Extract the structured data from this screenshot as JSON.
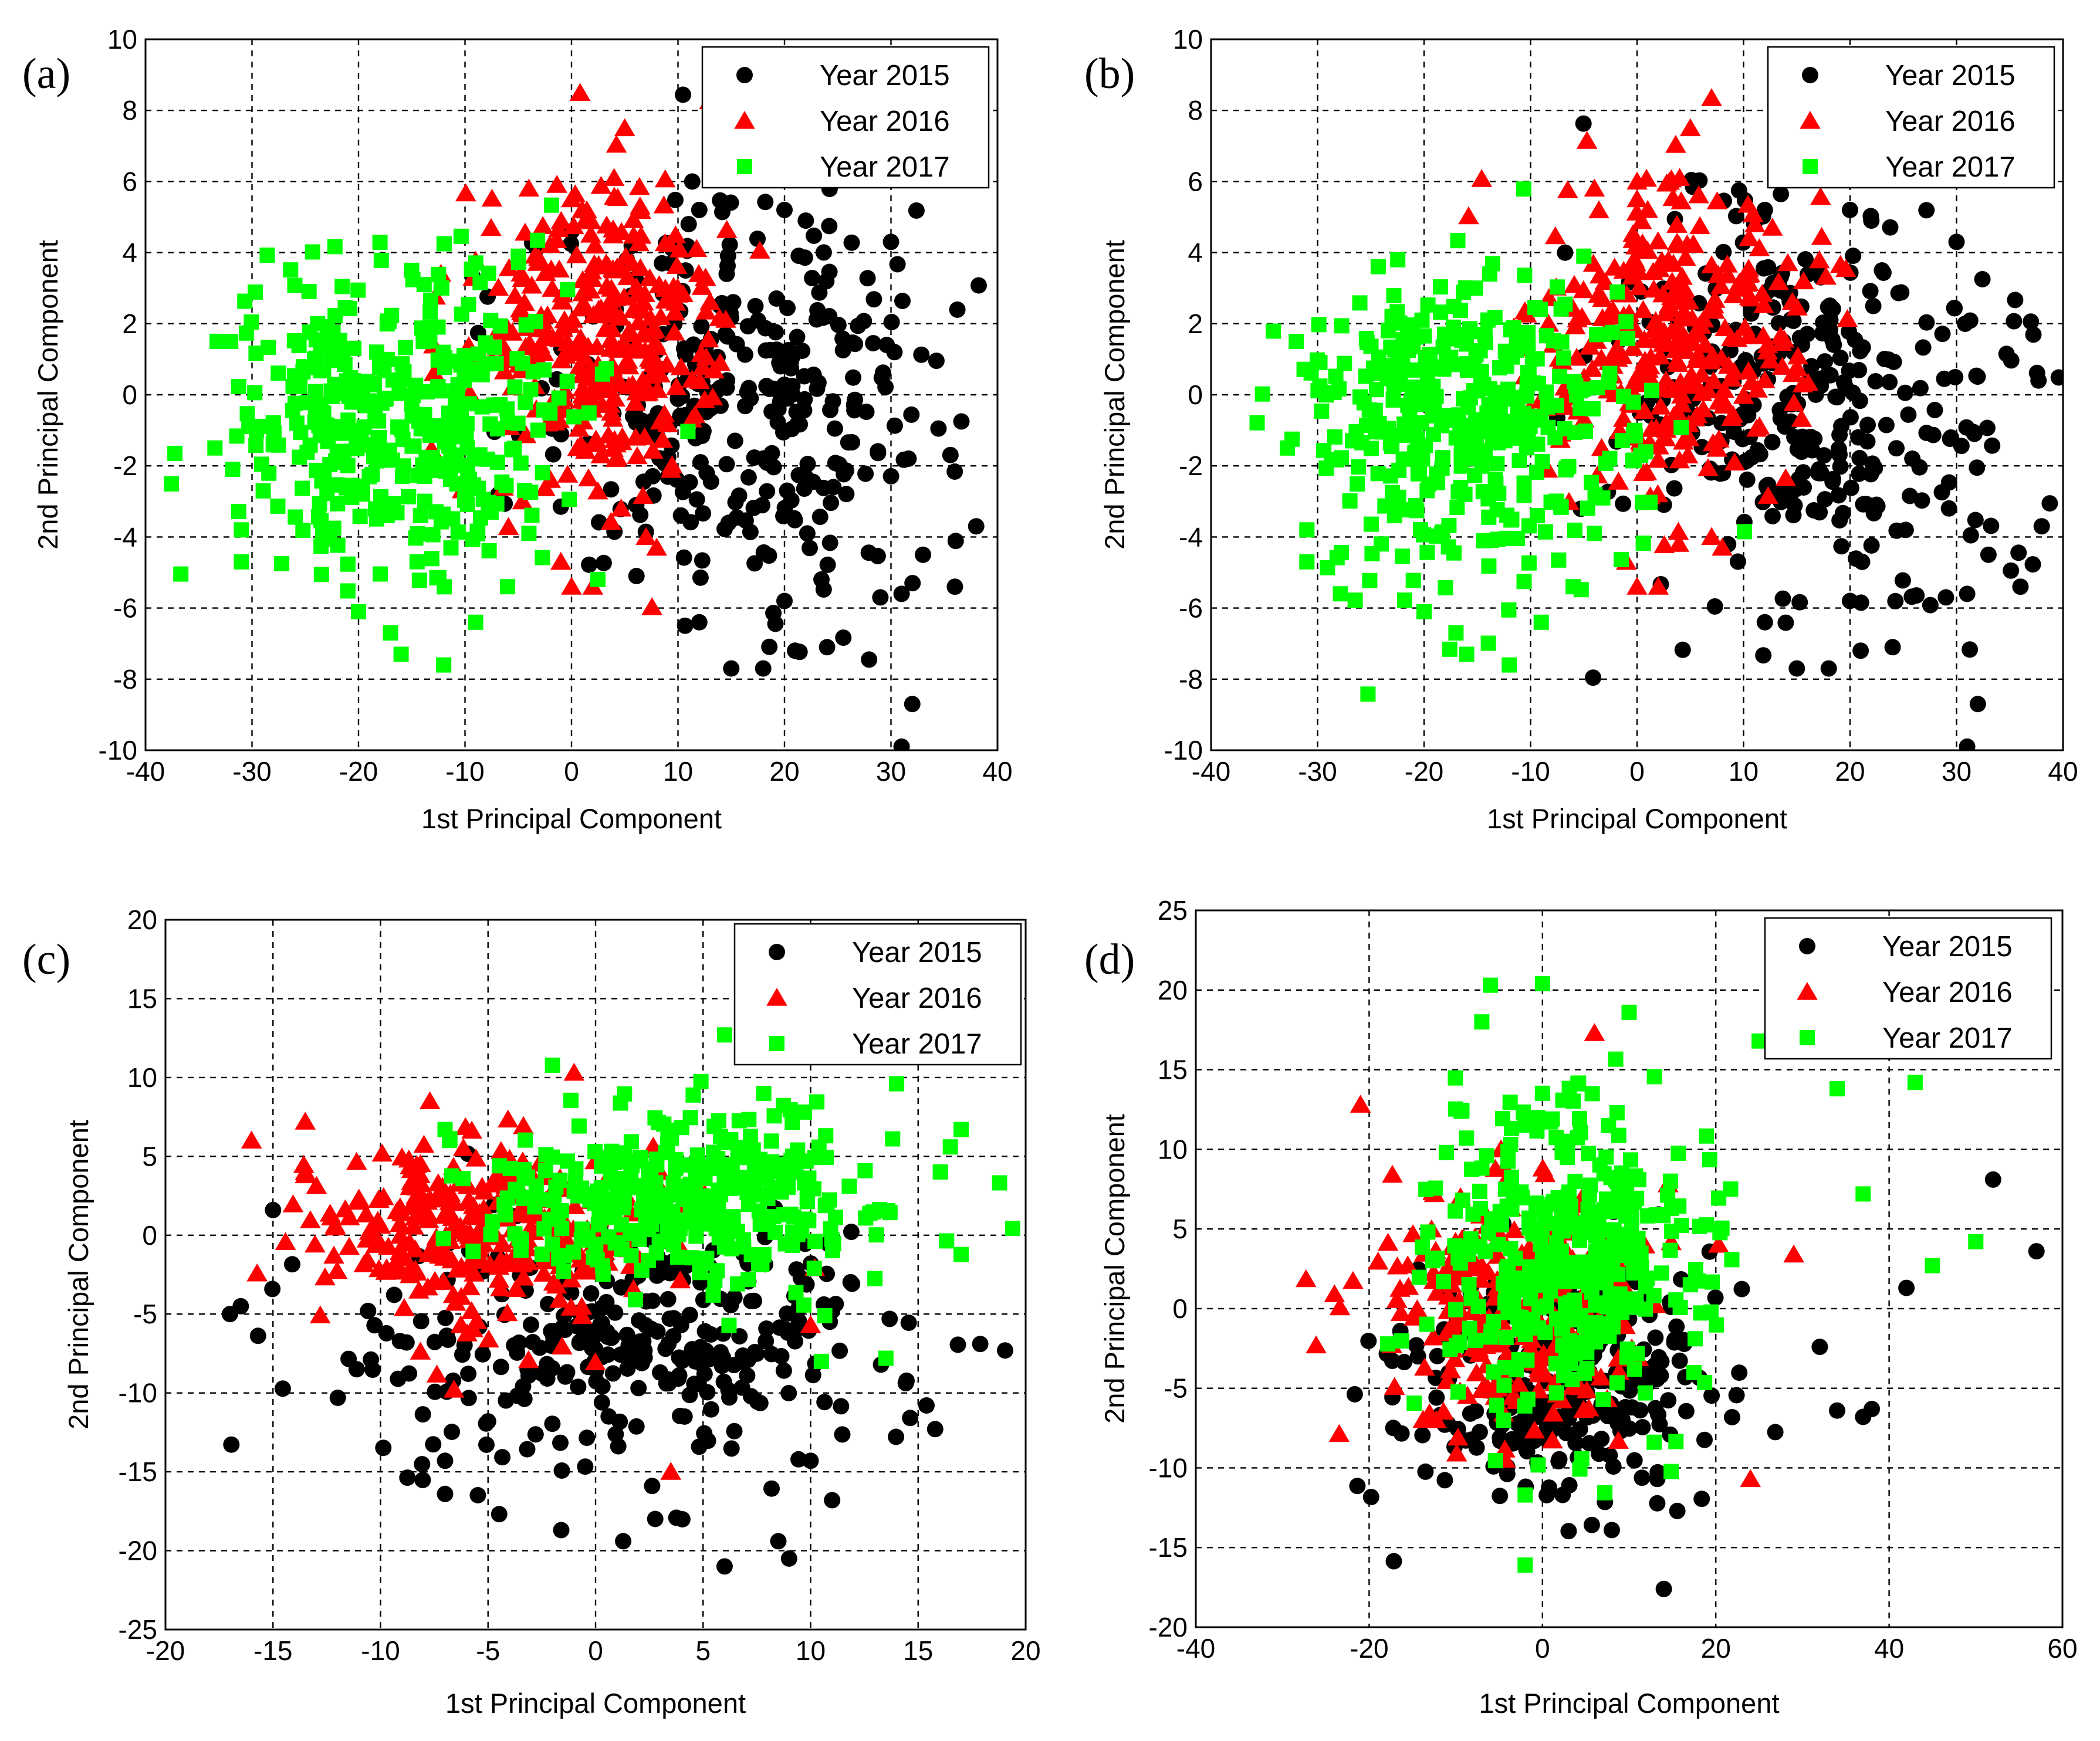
{
  "colors": {
    "year_2015": "#000000",
    "year_2016": "#ff0000",
    "year_2017": "#00ff00"
  },
  "chart_data": [
    {
      "id": "a",
      "panel_label": "(a)",
      "type": "scatter",
      "xlabel": "1st Principal Component",
      "ylabel": "2nd Principal Component",
      "xlim": [
        -40,
        40
      ],
      "ylim": [
        -10,
        10
      ],
      "xticks": [
        -40,
        -30,
        -20,
        -10,
        0,
        10,
        20,
        30,
        40
      ],
      "yticks": [
        -10,
        -8,
        -6,
        -4,
        -2,
        0,
        2,
        4,
        6,
        8,
        10
      ],
      "grid": true,
      "legend_position": "top-right",
      "legend": [
        "Year 2015",
        "Year 2016",
        "Year 2017"
      ],
      "series": [
        {
          "name": "Year 2015",
          "marker": "circle",
          "color": "#000000",
          "center": [
            16,
            0
          ],
          "spread": [
            10,
            2.8
          ],
          "count": 320,
          "x": [
            12,
            11,
            20,
            22,
            30,
            31,
            32,
            38,
            36,
            33,
            15,
            18,
            20,
            24,
            31,
            29,
            21,
            12
          ],
          "y": [
            5.2,
            4.8,
            5.2,
            4.9,
            4.3,
            -9.9,
            -8.7,
            -3.7,
            -5.4,
            -4.5,
            -7.7,
            -7.7,
            -5.8,
            -7.1,
            -5.6,
            -5.7,
            -7.2,
            -6.4
          ]
        },
        {
          "name": "Year 2016",
          "marker": "triangle",
          "color": "#ff0000",
          "center": [
            3,
            1.6
          ],
          "spread": [
            6,
            2
          ],
          "count": 320,
          "x": [
            5,
            4,
            -4,
            0,
            1,
            2,
            0,
            8,
            7,
            -1
          ],
          "y": [
            7.5,
            6.1,
            5.8,
            5.5,
            5.2,
            -5.4,
            -5.4,
            -4.3,
            -4,
            -4.7
          ]
        },
        {
          "name": "Year 2017",
          "marker": "square",
          "color": "#00ff00",
          "center": [
            -16,
            -0.6
          ],
          "spread": [
            8,
            2.2
          ],
          "count": 380,
          "x": [
            -32,
            -31,
            -31,
            -20,
            -16,
            -17,
            -12,
            -9,
            -6,
            -5,
            -4
          ],
          "y": [
            1.5,
            -3.8,
            -4.7,
            -6.1,
            -7.3,
            -6.7,
            -7.6,
            -6.4,
            -5.4,
            3.9,
            -3.9
          ]
        }
      ]
    },
    {
      "id": "b",
      "panel_label": "(b)",
      "type": "scatter",
      "xlabel": "1st Principal Component",
      "ylabel": "2nd Principal Component",
      "xlim": [
        -40,
        40
      ],
      "ylim": [
        -10,
        10
      ],
      "xticks": [
        -40,
        -30,
        -20,
        -10,
        0,
        10,
        20,
        30,
        40
      ],
      "yticks": [
        -10,
        -8,
        -6,
        -4,
        -2,
        0,
        2,
        4,
        6,
        8,
        10
      ],
      "grid": true,
      "legend_position": "top-right",
      "legend": [
        "Year 2015",
        "Year 2016",
        "Year 2017"
      ],
      "series": [
        {
          "name": "Year 2015",
          "marker": "circle",
          "color": "#000000",
          "center": [
            16,
            0
          ],
          "spread": [
            10,
            2.8
          ],
          "count": 320,
          "x": [
            12,
            11,
            20,
            22,
            30,
            31,
            32,
            38,
            36,
            33,
            15,
            18,
            20,
            24,
            31,
            29,
            21,
            12
          ],
          "y": [
            5.2,
            4.8,
            5.2,
            4.9,
            4.3,
            -9.9,
            -8.7,
            -3.7,
            -5.4,
            -4.5,
            -7.7,
            -7.7,
            -5.8,
            -7.1,
            -5.6,
            -5.7,
            -7.2,
            -6.4
          ]
        },
        {
          "name": "Year 2016",
          "marker": "triangle",
          "color": "#ff0000",
          "center": [
            3,
            1.6
          ],
          "spread": [
            6,
            2
          ],
          "count": 320,
          "x": [
            5,
            4,
            -4,
            0,
            1,
            2,
            0,
            8,
            7,
            -1
          ],
          "y": [
            7.5,
            6.1,
            5.8,
            5.5,
            5.2,
            -5.4,
            -5.4,
            -4.3,
            -4,
            -4.7
          ]
        },
        {
          "name": "Year 2017",
          "marker": "square",
          "color": "#00ff00",
          "center": [
            -16,
            -0.6
          ],
          "spread": [
            8,
            2.2
          ],
          "count": 380,
          "x": [
            -32,
            -31,
            -31,
            -20,
            -16,
            -17,
            -12,
            -9,
            -6,
            -5,
            -4
          ],
          "y": [
            1.5,
            -3.8,
            -4.7,
            -6.1,
            -7.3,
            -6.7,
            -7.6,
            -6.4,
            -5.4,
            3.9,
            -3.9
          ]
        }
      ]
    },
    {
      "id": "c",
      "panel_label": "(c)",
      "type": "scatter",
      "xlabel": "1st Principal Component",
      "ylabel": "2nd Principal Component",
      "xlim": [
        -20,
        20
      ],
      "ylim": [
        -25,
        20
      ],
      "xticks": [
        -20,
        -15,
        -10,
        -5,
        0,
        5,
        10,
        15,
        20
      ],
      "yticks": [
        -25,
        -20,
        -15,
        -10,
        -5,
        0,
        5,
        10,
        15,
        20
      ],
      "grid": true,
      "legend_position": "top-right",
      "legend": [
        "Year 2015",
        "Year 2016",
        "Year 2017"
      ],
      "series": [
        {
          "name": "Year 2015",
          "marker": "circle",
          "color": "#000000",
          "center": [
            2,
            -7
          ],
          "spread": [
            6,
            4
          ],
          "count": 320,
          "x": [
            -17,
            -16.5,
            -15,
            -7,
            -7,
            -5,
            6,
            8.5,
            9,
            11,
            10
          ],
          "y": [
            -5,
            -4.5,
            1.6,
            -14.3,
            -16.4,
            -11.8,
            -21,
            -19.4,
            -20.5,
            -16.8,
            -14.3
          ]
        },
        {
          "name": "Year 2016",
          "marker": "triangle",
          "color": "#ff0000",
          "center": [
            -5,
            0.5
          ],
          "spread": [
            4,
            3
          ],
          "count": 300,
          "x": [
            -16,
            -13.5,
            -13.5,
            -1,
            3.5,
            10
          ],
          "y": [
            6,
            7.2,
            4,
            10.3,
            -15,
            -5.7
          ]
        },
        {
          "name": "Year 2017",
          "marker": "square",
          "color": "#00ff00",
          "center": [
            4,
            2.5
          ],
          "spread": [
            5,
            3
          ],
          "count": 360,
          "x": [
            6,
            14,
            16.5,
            17,
            13.5,
            10.5,
            -7
          ],
          "y": [
            12.7,
            9.6,
            5.6,
            6.7,
            -7.8,
            -8,
            6.7
          ]
        }
      ]
    },
    {
      "id": "d",
      "panel_label": "(d)",
      "type": "scatter",
      "xlabel": "1st Principal Component",
      "ylabel": "2nd Principal Component",
      "xlim": [
        -40,
        60
      ],
      "ylim": [
        -20,
        25
      ],
      "xticks": [
        -40,
        -20,
        0,
        20,
        40,
        60
      ],
      "yticks": [
        -20,
        -15,
        -10,
        -5,
        0,
        5,
        10,
        15,
        20,
        25
      ],
      "grid": true,
      "legend_position": "top-right",
      "legend": [
        "Year 2015",
        "Year 2016",
        "Year 2017"
      ],
      "series": [
        {
          "name": "Year 2015",
          "marker": "circle",
          "color": "#000000",
          "center": [
            2,
            -4
          ],
          "spread": [
            9,
            4
          ],
          "count": 320,
          "x": [
            57,
            52,
            42,
            32,
            34,
            37,
            38,
            14,
            8
          ],
          "y": [
            3.6,
            8.1,
            1.3,
            -2.4,
            -6.4,
            -6.8,
            -6.3,
            -17.6,
            -13.9
          ]
        },
        {
          "name": "Year 2016",
          "marker": "triangle",
          "color": "#ff0000",
          "center": [
            -4,
            0
          ],
          "spread": [
            7,
            4
          ],
          "count": 260,
          "x": [
            -21,
            -24,
            6,
            29,
            24
          ],
          "y": [
            12.8,
            0.9,
            17.3,
            3.4,
            -10.7
          ]
        },
        {
          "name": "Year 2017",
          "marker": "square",
          "color": "#00ff00",
          "center": [
            3,
            3
          ],
          "spread": [
            8,
            5
          ],
          "count": 380,
          "x": [
            -6,
            -7,
            0,
            10,
            25,
            34,
            43,
            45,
            50,
            37,
            -2,
            -2
          ],
          "y": [
            20.3,
            18,
            20.4,
            18.6,
            16.8,
            13.8,
            14.2,
            2.7,
            4.2,
            7.2,
            -16.1,
            -11.7
          ]
        }
      ]
    }
  ]
}
